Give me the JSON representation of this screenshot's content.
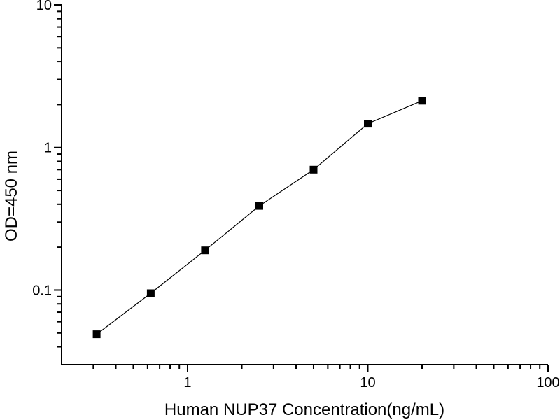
{
  "figure": {
    "background": "#ffffff",
    "axis_color": "#000000"
  },
  "chart_data": {
    "type": "line",
    "title": "",
    "xlabel": "Human NUP37 Concentration(ng/mL)",
    "ylabel": "OD=450 nm",
    "xscale": "log",
    "yscale": "log",
    "xlim": [
      0.2,
      100
    ],
    "ylim": [
      0.03,
      10
    ],
    "x": [
      0.313,
      0.625,
      1.25,
      2.5,
      5,
      10,
      20
    ],
    "y": [
      0.049,
      0.095,
      0.19,
      0.39,
      0.7,
      1.47,
      2.13
    ],
    "x_major_ticks": {
      "values": [
        1,
        10,
        100
      ],
      "labels": [
        "1",
        "10",
        "100"
      ]
    },
    "y_major_ticks": {
      "values": [
        0.1,
        1,
        10
      ],
      "labels": [
        "0.1",
        "1",
        "10"
      ]
    },
    "marker": "filled-square",
    "marker_color": "#000000",
    "line_color": "#000000",
    "grid": false,
    "legend": false
  }
}
